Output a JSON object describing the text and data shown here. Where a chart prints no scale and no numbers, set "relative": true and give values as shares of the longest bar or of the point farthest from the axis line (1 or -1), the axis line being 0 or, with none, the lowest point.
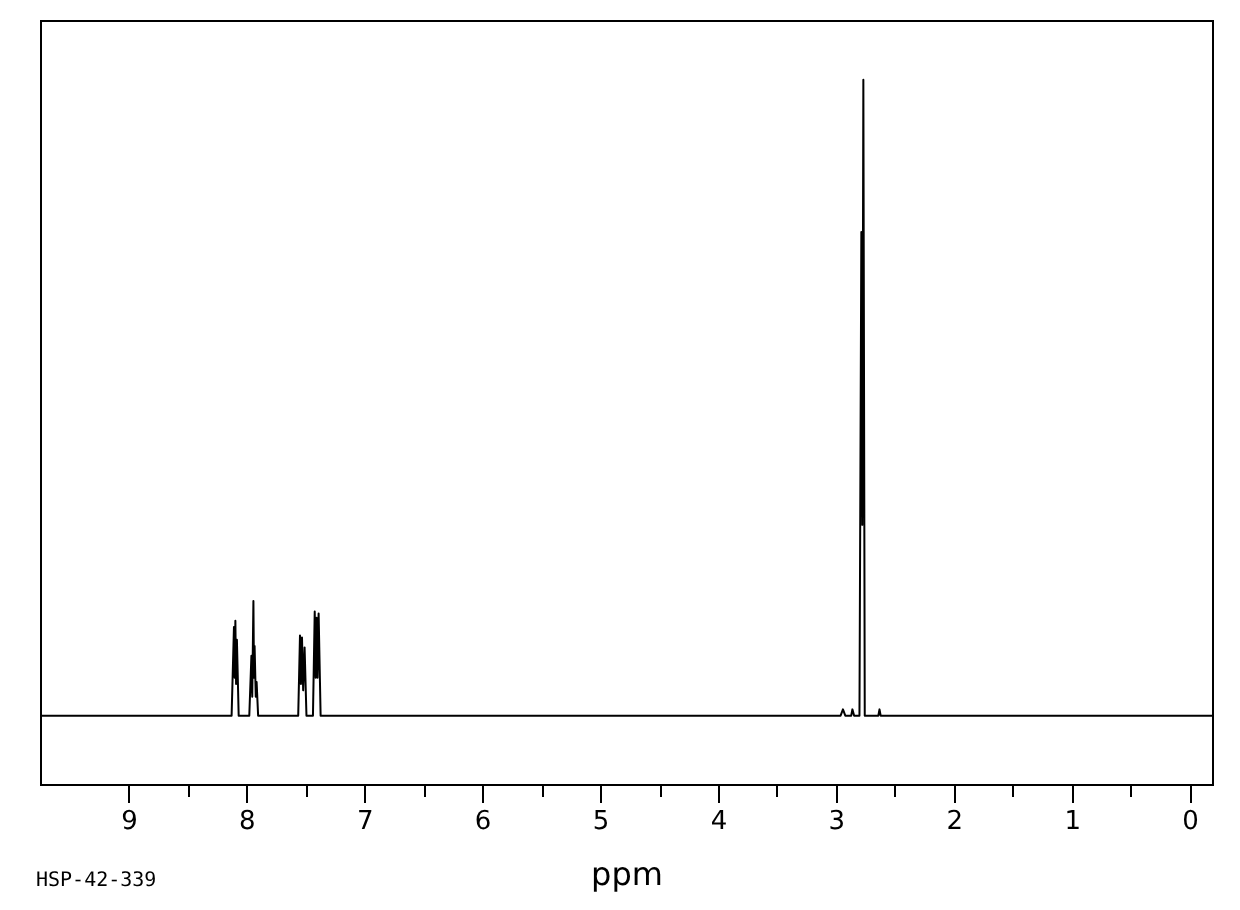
{
  "chart_data": {
    "type": "line",
    "xlabel": "ppm",
    "annotations": [
      "HSP-42-339"
    ],
    "relative": true,
    "color": "#000000",
    "xlim": [
      9.75,
      -0.19
    ],
    "xticks": [
      9,
      {
        "value": 8.5,
        "label": null
      },
      8,
      {
        "value": 7.5,
        "label": null
      },
      7,
      {
        "value": 6.5,
        "label": null
      },
      6,
      {
        "value": 5.5,
        "label": null
      },
      5,
      {
        "value": 4.5,
        "label": null
      },
      4,
      {
        "value": 3.5,
        "label": null
      },
      3,
      {
        "value": 2.5,
        "label": null
      },
      2,
      {
        "value": 1.5,
        "label": null
      },
      1,
      {
        "value": 0.5,
        "label": null
      },
      0
    ],
    "x": [
      9.75,
      8.125,
      8.105,
      8.099,
      8.093,
      8.087,
      8.08,
      8.065,
      7.975,
      7.957,
      7.95,
      7.94,
      7.935,
      7.93,
      7.92,
      7.913,
      7.9,
      7.56,
      7.545,
      7.537,
      7.528,
      7.518,
      7.506,
      7.49,
      7.435,
      7.42,
      7.412,
      7.404,
      7.396,
      7.387,
      7.37,
      2.96,
      2.94,
      2.92,
      2.87,
      2.86,
      2.845,
      2.8,
      2.784,
      2.776,
      2.767,
      2.755,
      2.64,
      2.63,
      2.62,
      -0.19
    ],
    "values": [
      0.097,
      0.097,
      0.223,
      0.151,
      0.232,
      0.142,
      0.205,
      0.097,
      0.097,
      0.182,
      0.124,
      0.26,
      0.151,
      0.196,
      0.124,
      0.145,
      0.097,
      0.097,
      0.211,
      0.142,
      0.208,
      0.133,
      0.194,
      0.097,
      0.097,
      0.245,
      0.151,
      0.236,
      0.151,
      0.242,
      0.097,
      0.097,
      0.106,
      0.097,
      0.097,
      0.106,
      0.097,
      0.097,
      0.784,
      0.368,
      1,
      0.097,
      0.097,
      0.106,
      0.097,
      0.097
    ]
  }
}
